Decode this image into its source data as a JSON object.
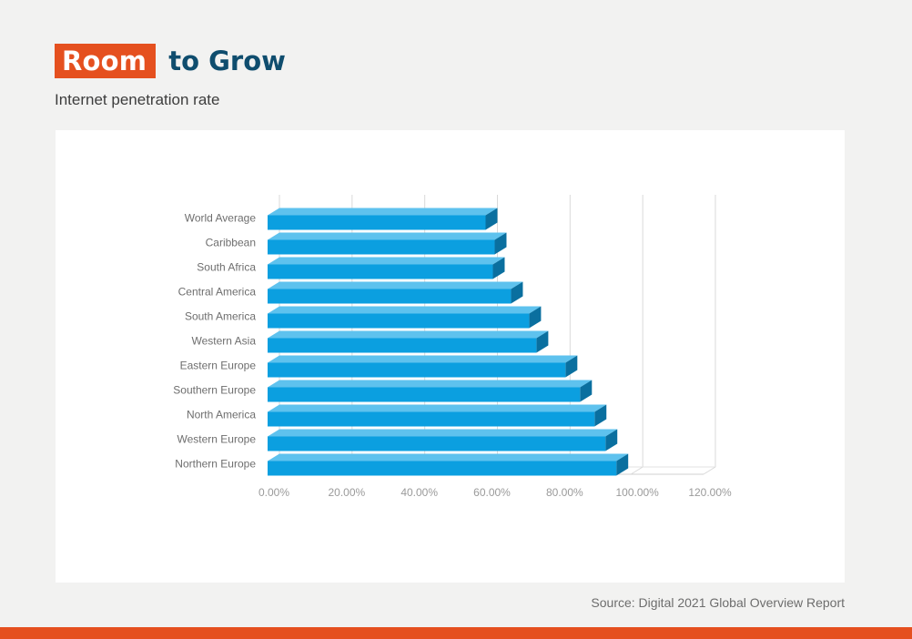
{
  "header": {
    "title_highlight": "Room",
    "title_rest": "to Grow",
    "subtitle": "Internet penetration rate"
  },
  "footer": {
    "source": "Source: Digital 2021 Global Overview Report"
  },
  "colors": {
    "accent": "#e5501f",
    "title": "#0f4d6e",
    "bar_front": "#0b9fe0",
    "bar_top": "#5ec2ee",
    "bar_side": "#0a6f9f"
  },
  "chart_data": {
    "type": "bar",
    "orientation": "horizontal",
    "style": "3d",
    "categories": [
      "World Average",
      "Caribbean",
      "South Africa",
      "Central America",
      "South America",
      "Western Asia",
      "Eastern Europe",
      "Southern Europe",
      "North America",
      "Western Europe",
      "Northern Europe"
    ],
    "values": [
      0.6,
      0.625,
      0.62,
      0.67,
      0.72,
      0.74,
      0.82,
      0.86,
      0.9,
      0.93,
      0.96
    ],
    "xlim": [
      0,
      1.2
    ],
    "xticks": [
      0,
      0.2,
      0.4,
      0.6,
      0.8,
      1.0,
      1.2
    ],
    "xtick_labels": [
      "0.00%",
      "20.00%",
      "40.00%",
      "60.00%",
      "80.00%",
      "100.00%",
      "120.00%"
    ],
    "grid": true,
    "legend": "none"
  }
}
